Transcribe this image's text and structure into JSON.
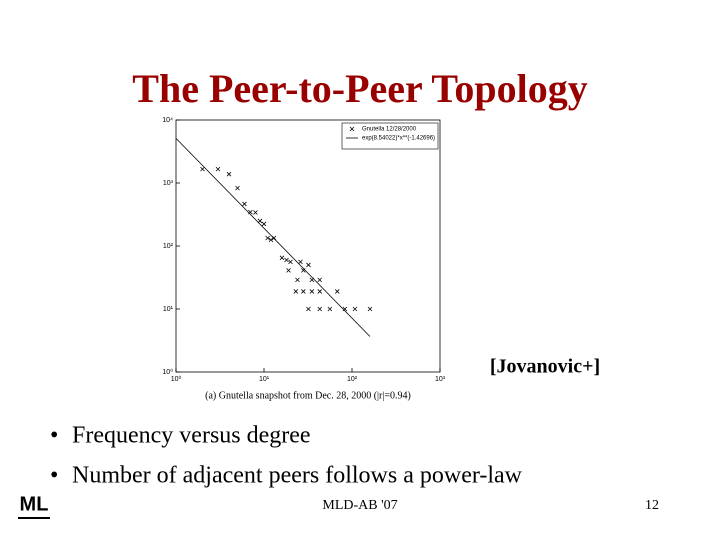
{
  "title": "The Peer-to-Peer Topology",
  "citation": "[Jovanovic+]",
  "bullets": [
    "Frequency versus degree",
    "Number of adjacent peers follows a power-law"
  ],
  "footer": "MLD-AB '07",
  "page_number": "12",
  "logo": "ML",
  "chart_data": {
    "type": "scatter",
    "caption": "(a) Gnutella snapshot from Dec. 28, 2000 (|r|=0.94)",
    "xscale": "log",
    "yscale": "log",
    "xlim": [
      1,
      1000
    ],
    "ylim": [
      1,
      10000
    ],
    "xticks": [
      {
        "value": 1,
        "label": "10⁰"
      },
      {
        "value": 10,
        "label": "10¹"
      },
      {
        "value": 100,
        "label": "10²"
      },
      {
        "value": 1000,
        "label": "10³"
      }
    ],
    "yticks": [
      {
        "value": 1,
        "label": "10⁰"
      },
      {
        "value": 10,
        "label": "10¹"
      },
      {
        "value": 100,
        "label": "10²"
      },
      {
        "value": 1000,
        "label": "10³"
      },
      {
        "value": 10000,
        "label": "10⁴"
      }
    ],
    "legend": "upper right",
    "series": [
      {
        "name": "Gnutella 12/28/2000",
        "style": "markers",
        "color": "#000000",
        "x": [
          2,
          3,
          4,
          5,
          6,
          7,
          8,
          9,
          10,
          11,
          12,
          13,
          16,
          18,
          20,
          19,
          26,
          32,
          28,
          24,
          35,
          43,
          23,
          28,
          35,
          43,
          68,
          32,
          43,
          56,
          83,
          108,
          160
        ],
        "values": [
          1660,
          1660,
          1380,
          830,
          465,
          345,
          340,
          250,
          224,
          134,
          125,
          134,
          65,
          60,
          56,
          41,
          56,
          50,
          41,
          29,
          29,
          29,
          19,
          19,
          19,
          19,
          19,
          10,
          10,
          10,
          10,
          10,
          10
        ]
      },
      {
        "name": "exp(8.54022)*x**(-1.42696)",
        "style": "line",
        "color": "#000000",
        "x": [
          1,
          160
        ],
        "values": [
          5115,
          3.66
        ]
      }
    ]
  }
}
